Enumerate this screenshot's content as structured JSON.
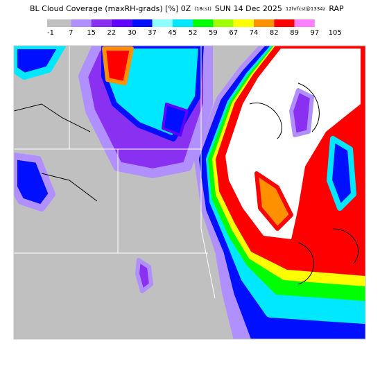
{
  "header": {
    "segments": [
      "BL Cloud Coverage (maxRH-grads) [%] 0Z",
      "(18cst)",
      "SUN 14 Dec 2025",
      "12hrfcst@1334z",
      "RAP"
    ]
  },
  "legend": {
    "labels": [
      -1,
      7,
      15,
      22,
      30,
      37,
      45,
      52,
      59,
      67,
      74,
      82,
      89,
      97,
      105
    ],
    "colors": [
      "#c0c0c0",
      "#b090ff",
      "#8a30f0",
      "#6000ff",
      "#0010ff",
      "#90ffff",
      "#00e8ff",
      "#00ff00",
      "#a0ff00",
      "#ffff00",
      "#ff9000",
      "#ff0000",
      "#ff80ff",
      "#ffffff"
    ]
  }
}
